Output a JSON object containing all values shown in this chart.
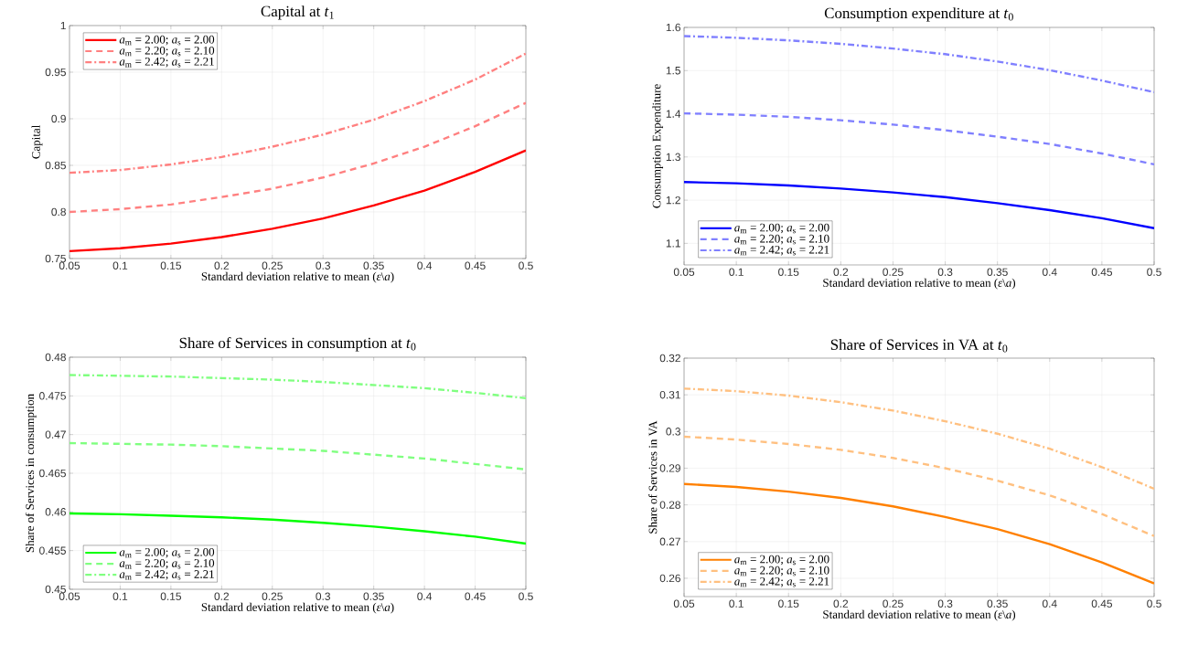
{
  "chart_data": [
    {
      "type": "line",
      "title": "Capital at *t*$_{1}$",
      "xlabel": "Standard deviation relative to mean (*ε*\\*a*)",
      "ylabel": "Capital",
      "x": [
        0.05,
        0.1,
        0.15,
        0.2,
        0.25,
        0.3,
        0.35,
        0.4,
        0.45,
        0.5
      ],
      "xlim": [
        0.05,
        0.5
      ],
      "xticks": [
        0.05,
        0.1,
        0.15,
        0.2,
        0.25,
        0.3,
        0.35,
        0.4,
        0.45,
        0.5
      ],
      "ylim": [
        0.75,
        1
      ],
      "yticks": [
        0.75,
        0.8,
        0.85,
        0.9,
        0.95,
        1
      ],
      "grid": true,
      "legend": "top left",
      "series": [
        {
          "name": "*a*$_{m}$ = 2.00;  *a*$_{s}$ = 2.00",
          "color": "#ff0000",
          "line_style": "solid",
          "values": [
            0.758,
            0.761,
            0.766,
            0.773,
            0.782,
            0.793,
            0.807,
            0.823,
            0.843,
            0.866
          ]
        },
        {
          "name": "*a*$_{m}$ = 2.20;  *a*$_{s}$ = 2.10",
          "color": "#ff8080",
          "line_style": "dashed",
          "values": [
            0.8,
            0.803,
            0.808,
            0.816,
            0.825,
            0.837,
            0.852,
            0.87,
            0.892,
            0.917
          ]
        },
        {
          "name": "*a*$_{m}$ = 2.42;  *a*$_{s}$ = 2.21",
          "color": "#ff8080",
          "line_style": "dashdot",
          "values": [
            0.842,
            0.845,
            0.851,
            0.859,
            0.87,
            0.883,
            0.899,
            0.919,
            0.942,
            0.97
          ]
        }
      ]
    },
    {
      "type": "line",
      "title": "Consumption expenditure at *t*$_{0}$",
      "xlabel": "Standard deviation relative to mean (*ε*\\*a*)",
      "ylabel": "Consumption Expenditure",
      "x": [
        0.05,
        0.1,
        0.15,
        0.2,
        0.25,
        0.3,
        0.35,
        0.4,
        0.45,
        0.5
      ],
      "xlim": [
        0.05,
        0.5
      ],
      "xticks": [
        0.05,
        0.1,
        0.15,
        0.2,
        0.25,
        0.3,
        0.35,
        0.4,
        0.45,
        0.5
      ],
      "ylim": [
        1.05,
        1.6
      ],
      "yticks": [
        1.1,
        1.2,
        1.3,
        1.4,
        1.5,
        1.6
      ],
      "grid": true,
      "legend": "bottom left",
      "series": [
        {
          "name": "*a*$_{m}$ = 2.00;  *a*$_{s}$ = 2.00",
          "color": "#0000ff",
          "line_style": "solid",
          "values": [
            1.242,
            1.239,
            1.234,
            1.227,
            1.218,
            1.207,
            1.193,
            1.177,
            1.158,
            1.135
          ]
        },
        {
          "name": "*a*$_{m}$ = 2.20;  *a*$_{s}$ = 2.10",
          "color": "#8080ff",
          "line_style": "dashed",
          "values": [
            1.401,
            1.398,
            1.393,
            1.385,
            1.375,
            1.362,
            1.347,
            1.33,
            1.308,
            1.283
          ]
        },
        {
          "name": "*a*$_{m}$ = 2.42;  *a*$_{s}$ = 2.21",
          "color": "#8080ff",
          "line_style": "dashdot",
          "values": [
            1.58,
            1.576,
            1.57,
            1.562,
            1.551,
            1.538,
            1.521,
            1.501,
            1.477,
            1.45
          ]
        }
      ]
    },
    {
      "type": "line",
      "title": "Share of Services in consumption at *t*$_{0}$",
      "xlabel": "Standard deviation relative to mean (*ε*\\*a*)",
      "ylabel": "Share of Services in consumption",
      "x": [
        0.05,
        0.1,
        0.15,
        0.2,
        0.25,
        0.3,
        0.35,
        0.4,
        0.45,
        0.5
      ],
      "xlim": [
        0.05,
        0.5
      ],
      "xticks": [
        0.05,
        0.1,
        0.15,
        0.2,
        0.25,
        0.3,
        0.35,
        0.4,
        0.45,
        0.5
      ],
      "ylim": [
        0.45,
        0.48
      ],
      "yticks": [
        0.45,
        0.455,
        0.46,
        0.465,
        0.47,
        0.475,
        0.48
      ],
      "grid": true,
      "legend": "bottom left",
      "series": [
        {
          "name": "*a*$_{m}$ = 2.00;  *a*$_{s}$ = 2.00",
          "color": "#00ff00",
          "line_style": "solid",
          "values": [
            0.4598,
            0.4597,
            0.4595,
            0.4593,
            0.459,
            0.4586,
            0.4581,
            0.4575,
            0.4568,
            0.4559
          ]
        },
        {
          "name": "*a*$_{m}$ = 2.20;  *a*$_{s}$ = 2.10",
          "color": "#80ff80",
          "line_style": "dashed",
          "values": [
            0.4689,
            0.4688,
            0.4687,
            0.4685,
            0.4682,
            0.4679,
            0.4674,
            0.4669,
            0.4662,
            0.4655
          ]
        },
        {
          "name": "*a*$_{m}$ = 2.42;  *a*$_{s}$ = 2.21",
          "color": "#80ff80",
          "line_style": "dashdot",
          "values": [
            0.4777,
            0.4776,
            0.4775,
            0.4773,
            0.4771,
            0.4768,
            0.4764,
            0.476,
            0.4754,
            0.4747
          ]
        }
      ]
    },
    {
      "type": "line",
      "title": "Share of Services in VA at *t*$_{0}$",
      "xlabel": "Standard deviation relative to mean (*ε*\\*a*)",
      "ylabel": "Share of Services in VA",
      "x": [
        0.05,
        0.1,
        0.15,
        0.2,
        0.25,
        0.3,
        0.35,
        0.4,
        0.45,
        0.5
      ],
      "xlim": [
        0.05,
        0.5
      ],
      "xticks": [
        0.05,
        0.1,
        0.15,
        0.2,
        0.25,
        0.3,
        0.35,
        0.4,
        0.45,
        0.5
      ],
      "ylim": [
        0.255,
        0.32
      ],
      "yticks": [
        0.26,
        0.27,
        0.28,
        0.29,
        0.3,
        0.31,
        0.32
      ],
      "grid": true,
      "legend": "bottom left",
      "series": [
        {
          "name": "*a*$_{m}$ = 2.00;  *a*$_{s}$ = 2.00",
          "color": "#ff8000",
          "line_style": "solid",
          "values": [
            0.2857,
            0.2849,
            0.2836,
            0.2819,
            0.2796,
            0.2767,
            0.2734,
            0.2693,
            0.2643,
            0.2586
          ]
        },
        {
          "name": "*a*$_{m}$ = 2.20;  *a*$_{s}$ = 2.10",
          "color": "#ffc080",
          "line_style": "dashed",
          "values": [
            0.2986,
            0.2978,
            0.2966,
            0.295,
            0.2928,
            0.29,
            0.2866,
            0.2826,
            0.2775,
            0.2715
          ]
        },
        {
          "name": "*a*$_{m}$ = 2.42;  *a*$_{s}$ = 2.21",
          "color": "#ffc080",
          "line_style": "dashdot",
          "values": [
            0.3117,
            0.311,
            0.3098,
            0.308,
            0.3057,
            0.3028,
            0.2994,
            0.2953,
            0.2903,
            0.2844
          ]
        }
      ]
    }
  ]
}
